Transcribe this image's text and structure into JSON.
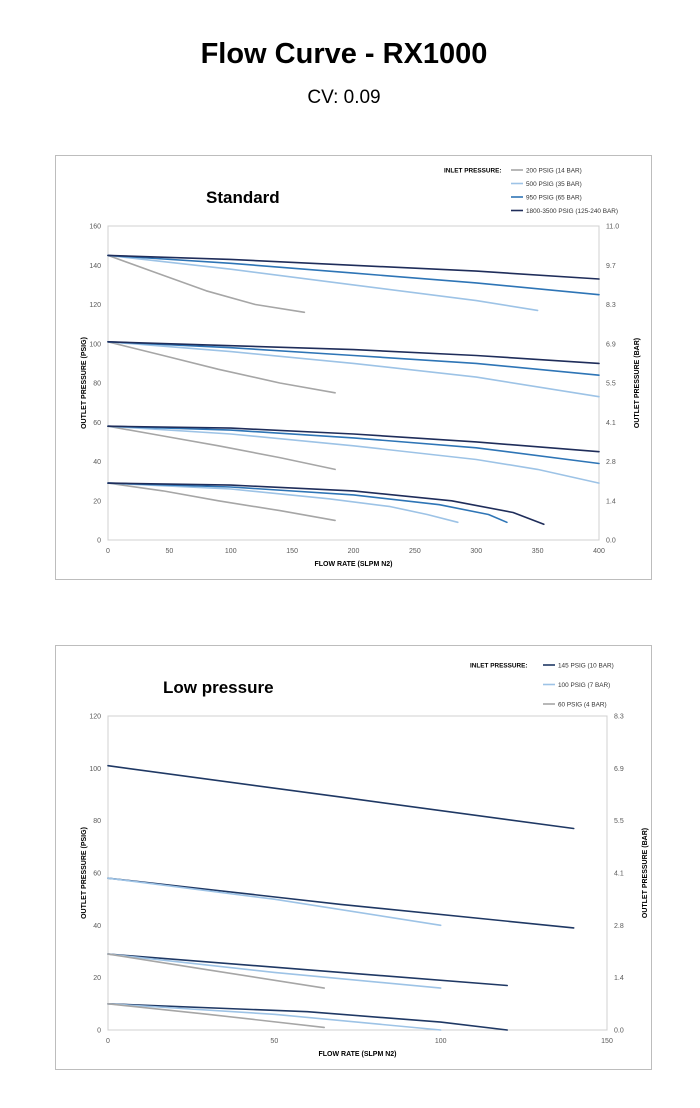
{
  "page": {
    "title": "Flow Curve - RX1000",
    "subtitle": "CV: 0.09"
  },
  "chart_data": [
    {
      "type": "line",
      "title": "Standard",
      "xlabel": "FLOW RATE (SLPM N2)",
      "ylabel": "OUTLET PRESSURE (PSIG)",
      "y2label": "OUTLET PRESSURE (BAR)",
      "xlim": [
        0,
        400
      ],
      "ylim": [
        0,
        160
      ],
      "x_ticks": [
        "0",
        "50",
        "100",
        "150",
        "200",
        "250",
        "300",
        "350",
        "400"
      ],
      "y_ticks": [
        "0",
        "20",
        "40",
        "60",
        "80",
        "100",
        "120",
        "140",
        "160"
      ],
      "y2_ticks": [
        "0.0",
        "1.4",
        "2.8",
        "4.1",
        "5.5",
        "6.9",
        "8.3",
        "9.7",
        "11.0"
      ],
      "grid": false,
      "legend": {
        "title": "INLET PRESSURE:",
        "position": "top-right"
      },
      "series": [
        {
          "name": "200 PSIG (14 BAR)",
          "color": "#a6a6a6",
          "lines": [
            {
              "x": [
                0,
                40,
                80,
                120,
                160
              ],
              "y": [
                145,
                136,
                127,
                120,
                116
              ]
            },
            {
              "x": [
                0,
                45,
                90,
                140,
                185
              ],
              "y": [
                101,
                94,
                87,
                80,
                75
              ]
            },
            {
              "x": [
                0,
                45,
                90,
                140,
                185
              ],
              "y": [
                58,
                53,
                48,
                42,
                36
              ]
            },
            {
              "x": [
                0,
                45,
                90,
                140,
                185
              ],
              "y": [
                29,
                25,
                20,
                15,
                10
              ]
            }
          ]
        },
        {
          "name": "500 PSIG (35 BAR)",
          "color": "#9dc3e6",
          "lines": [
            {
              "x": [
                0,
                100,
                200,
                300,
                350
              ],
              "y": [
                145,
                138,
                130,
                122,
                117
              ]
            },
            {
              "x": [
                0,
                100,
                200,
                300,
                400
              ],
              "y": [
                101,
                96,
                90,
                83,
                73
              ]
            },
            {
              "x": [
                0,
                100,
                200,
                300,
                350,
                400
              ],
              "y": [
                58,
                54,
                48,
                41,
                36,
                29
              ]
            },
            {
              "x": [
                0,
                100,
                180,
                230,
                260,
                285
              ],
              "y": [
                29,
                26,
                21,
                17,
                13,
                9
              ]
            }
          ]
        },
        {
          "name": "950 PSIG (65 BAR)",
          "color": "#2e75b6",
          "lines": [
            {
              "x": [
                0,
                100,
                200,
                300,
                400
              ],
              "y": [
                145,
                141,
                136,
                131,
                125
              ]
            },
            {
              "x": [
                0,
                100,
                200,
                300,
                400
              ],
              "y": [
                101,
                98,
                94,
                90,
                84
              ]
            },
            {
              "x": [
                0,
                100,
                200,
                300,
                400
              ],
              "y": [
                58,
                56,
                52,
                47,
                39
              ]
            },
            {
              "x": [
                0,
                100,
                200,
                270,
                310,
                325
              ],
              "y": [
                29,
                27,
                23,
                18,
                13,
                9
              ]
            }
          ]
        },
        {
          "name": "1800-3500 PSIG (125-240 BAR)",
          "color": "#1f2d5a",
          "lines": [
            {
              "x": [
                0,
                100,
                200,
                300,
                400
              ],
              "y": [
                145,
                143,
                140,
                137,
                133
              ]
            },
            {
              "x": [
                0,
                100,
                200,
                300,
                400
              ],
              "y": [
                101,
                99,
                97,
                94,
                90
              ]
            },
            {
              "x": [
                0,
                100,
                200,
                300,
                400
              ],
              "y": [
                58,
                57,
                54,
                50,
                45
              ]
            },
            {
              "x": [
                0,
                100,
                200,
                280,
                330,
                355
              ],
              "y": [
                29,
                28,
                25,
                20,
                14,
                8
              ]
            }
          ]
        }
      ]
    },
    {
      "type": "line",
      "title": "Low pressure",
      "xlabel": "FLOW RATE (SLPM N2)",
      "ylabel": "OUTLET PRESSURE (PSIG)",
      "y2label": "OUTLET PRESSURE (BAR)",
      "xlim": [
        0,
        150
      ],
      "ylim": [
        0,
        120
      ],
      "x_ticks": [
        "0",
        "50",
        "100",
        "150"
      ],
      "y_ticks": [
        "0",
        "20",
        "40",
        "60",
        "80",
        "100",
        "120"
      ],
      "y2_ticks": [
        "0.0",
        "1.4",
        "2.8",
        "4.1",
        "5.5",
        "6.9",
        "8.3"
      ],
      "grid": false,
      "legend": {
        "title": "INLET PRESSURE:",
        "position": "top-right"
      },
      "series": [
        {
          "name": "145 PSIG (10 BAR)",
          "color": "#1f3864",
          "lines": [
            {
              "x": [
                0,
                70,
                140
              ],
              "y": [
                101,
                89,
                77
              ]
            },
            {
              "x": [
                0,
                70,
                140
              ],
              "y": [
                58,
                48,
                39
              ]
            },
            {
              "x": [
                0,
                60,
                120
              ],
              "y": [
                29,
                23,
                17
              ]
            },
            {
              "x": [
                0,
                60,
                100,
                120
              ],
              "y": [
                10,
                7,
                3,
                0
              ]
            }
          ]
        },
        {
          "name": "100 PSIG (7 BAR)",
          "color": "#9dc3e6",
          "lines": [
            {
              "x": [
                0,
                50,
                100
              ],
              "y": [
                58,
                50,
                40
              ]
            },
            {
              "x": [
                0,
                50,
                100
              ],
              "y": [
                29,
                22,
                16
              ]
            },
            {
              "x": [
                0,
                50,
                100
              ],
              "y": [
                10,
                6,
                0
              ]
            }
          ]
        },
        {
          "name": "60 PSIG (4 BAR)",
          "color": "#a6a6a6",
          "lines": [
            {
              "x": [
                0,
                30,
                65
              ],
              "y": [
                29,
                23,
                16
              ]
            },
            {
              "x": [
                0,
                30,
                65
              ],
              "y": [
                10,
                6,
                1
              ]
            }
          ]
        }
      ]
    }
  ]
}
